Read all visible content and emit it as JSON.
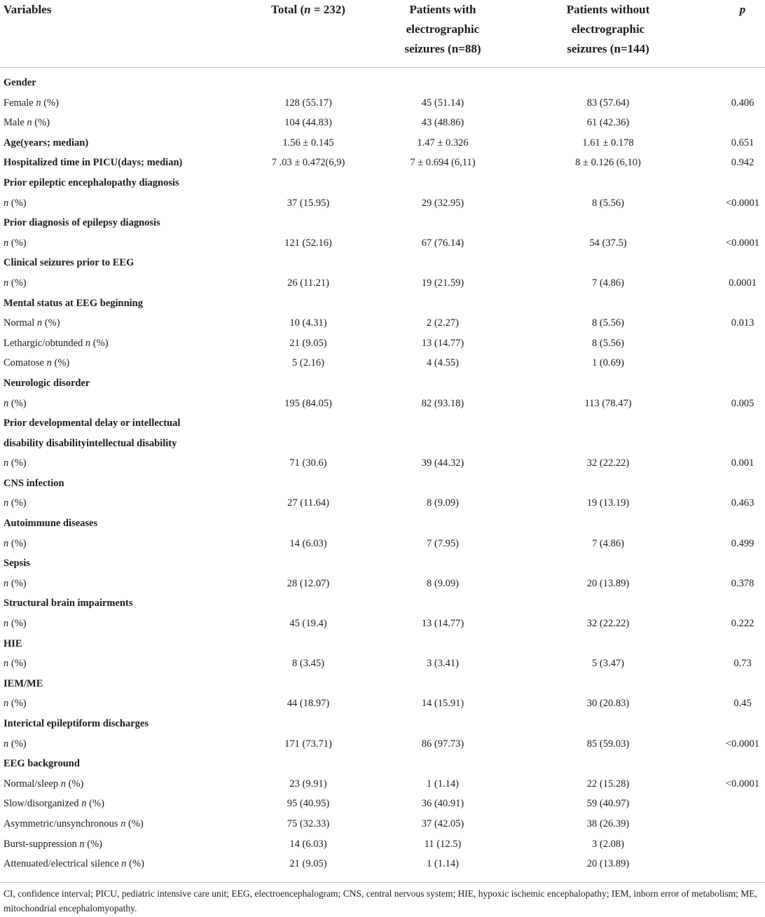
{
  "header": {
    "variables": "Variables",
    "total": "Total (n = 232)",
    "with_lines": [
      "Patients with",
      "electrographic",
      "seizures (n=88)"
    ],
    "without_lines": [
      "Patients without",
      "electrographic",
      "seizures (n=144)"
    ],
    "p": "p"
  },
  "rows": [
    {
      "type": "section",
      "label": "Gender"
    },
    {
      "type": "data",
      "label": "Female ",
      "n_italic": "n",
      "suffix": " (%)",
      "total": "128 (55.17)",
      "with": "45 (51.14)",
      "without": "83 (57.64)",
      "p": "0.406"
    },
    {
      "type": "data",
      "label": "Male ",
      "n_italic": "n",
      "suffix": " (%)",
      "total": "104 (44.83)",
      "with": "43 (48.86)",
      "without": "61 (42.36)",
      "p": ""
    },
    {
      "type": "section-data",
      "label": "Age(years; median)",
      "total": "1.56 ± 0.145",
      "with": "1.47 ± 0.326",
      "without": "1.61 ± 0.178",
      "p": "0.651"
    },
    {
      "type": "section-data",
      "label": "Hospitalized time in PICU(days; median)",
      "total": "7 .03 ± 0.472(6,9)",
      "with": "7 ± 0.694 (6,11)",
      "without": "8 ± 0.126 (6,10)",
      "p": "0.942"
    },
    {
      "type": "section",
      "label": "Prior epileptic encephalopathy diagnosis"
    },
    {
      "type": "data",
      "label": "",
      "n_italic": "n",
      "suffix": " (%)",
      "total": "37 (15.95)",
      "with": "29 (32.95)",
      "without": "8 (5.56)",
      "p": "<0.0001"
    },
    {
      "type": "section",
      "label": "Prior diagnosis of epilepsy diagnosis"
    },
    {
      "type": "data",
      "label": "",
      "n_italic": "n",
      "suffix": " (%)",
      "total": "121 (52.16)",
      "with": "67 (76.14)",
      "without": "54 (37.5)",
      "p": "<0.0001"
    },
    {
      "type": "section",
      "label": "Clinical seizures prior to EEG"
    },
    {
      "type": "data",
      "label": "",
      "n_italic": "n",
      "suffix": " (%)",
      "total": "26 (11.21)",
      "with": "19 (21.59)",
      "without": "7 (4.86)",
      "p": "0.0001"
    },
    {
      "type": "section",
      "label": "Mental status at EEG beginning"
    },
    {
      "type": "data",
      "label": "Normal ",
      "n_italic": "n",
      "suffix": " (%)",
      "total": "10 (4.31)",
      "with": "2 (2.27)",
      "without": "8 (5.56)",
      "p": "0.013"
    },
    {
      "type": "data",
      "label": "Lethargic/obtunded ",
      "n_italic": "n",
      "suffix": " (%)",
      "total": "21 (9.05)",
      "with": "13 (14.77)",
      "without": "8 (5.56)",
      "p": ""
    },
    {
      "type": "data",
      "label": "Comatose ",
      "n_italic": "n",
      "suffix": " (%)",
      "total": "5 (2.16)",
      "with": "4 (4.55)",
      "without": "1 (0.69)",
      "p": ""
    },
    {
      "type": "section",
      "label": "Neurologic disorder"
    },
    {
      "type": "data",
      "label": "",
      "n_italic": "n",
      "suffix": " (%)",
      "total": "195 (84.05)",
      "with": "82 (93.18)",
      "without": "113 (78.47)",
      "p": "0.005"
    },
    {
      "type": "section",
      "label": "Prior developmental delay or intellectual"
    },
    {
      "type": "section",
      "label": "disability disabilityintellectual disability"
    },
    {
      "type": "data",
      "label": "",
      "n_italic": "n",
      "suffix": " (%)",
      "total": "71 (30.6)",
      "with": "39 (44.32)",
      "without": "32 (22.22)",
      "p": "0.001"
    },
    {
      "type": "section",
      "label": "CNS infection"
    },
    {
      "type": "data",
      "label": "",
      "n_italic": "n",
      "suffix": " (%)",
      "total": "27 (11.64)",
      "with": "8 (9.09)",
      "without": "19 (13.19)",
      "p": "0.463"
    },
    {
      "type": "section",
      "label": "Autoimmune diseases"
    },
    {
      "type": "data",
      "label": "",
      "n_italic": "n",
      "suffix": " (%)",
      "total": "14 (6.03)",
      "with": "7 (7.95)",
      "without": "7 (4.86)",
      "p": "0.499"
    },
    {
      "type": "section",
      "label": "Sepsis"
    },
    {
      "type": "data",
      "label": "",
      "n_italic": "n",
      "suffix": " (%)",
      "total": "28 (12.07)",
      "with": "8 (9.09)",
      "without": "20 (13.89)",
      "p": "0.378"
    },
    {
      "type": "section",
      "label": "Structural brain impairments"
    },
    {
      "type": "data",
      "label": "",
      "n_italic": "n",
      "suffix": " (%)",
      "total": "45 (19.4)",
      "with": "13 (14.77)",
      "without": "32 (22.22)",
      "p": "0.222"
    },
    {
      "type": "section",
      "label": "HIE"
    },
    {
      "type": "data",
      "label": "",
      "n_italic": "n",
      "suffix": " (%)",
      "total": "8 (3.45)",
      "with": "3 (3.41)",
      "without": "5 (3.47)",
      "p": "0.73"
    },
    {
      "type": "section",
      "label": "IEM/ME"
    },
    {
      "type": "data",
      "label": "",
      "n_italic": "n",
      "suffix": " (%)",
      "total": "44 (18.97)",
      "with": "14 (15.91)",
      "without": "30 (20.83)",
      "p": "0.45"
    },
    {
      "type": "section",
      "label": "Interictal epileptiform discharges"
    },
    {
      "type": "data",
      "label": "",
      "n_italic": "n",
      "suffix": " (%)",
      "total": "171 (73.71)",
      "with": "86 (97.73)",
      "without": "85 (59.03)",
      "p": "<0.0001"
    },
    {
      "type": "section",
      "label": "EEG background"
    },
    {
      "type": "data",
      "label": "Normal/sleep ",
      "n_italic": "n",
      "suffix": " (%)",
      "total": "23 (9.91)",
      "with": "1 (1.14)",
      "without": "22 (15.28)",
      "p": "<0.0001"
    },
    {
      "type": "data",
      "label": "Slow/disorganized ",
      "n_italic": "n",
      "suffix": " (%)",
      "total": "95 (40.95)",
      "with": "36 (40.91)",
      "without": "59 (40.97)",
      "p": ""
    },
    {
      "type": "data",
      "label": "Asymmetric/unsynchronous ",
      "n_italic": "n",
      "suffix": " (%)",
      "total": "75 (32.33)",
      "with": "37 (42.05)",
      "without": "38 (26.39)",
      "p": ""
    },
    {
      "type": "data",
      "label": "Burst-suppression ",
      "n_italic": "n",
      "suffix": " (%)",
      "total": "14 (6.03)",
      "with": "11 (12.5)",
      "without": "3 (2.08)",
      "p": ""
    },
    {
      "type": "data",
      "label": "Attenuated/electrical silence ",
      "n_italic": "n",
      "suffix": " (%)",
      "total": "21 (9.05)",
      "with": "1 (1.14)",
      "without": "20 (13.89)",
      "p": ""
    }
  ],
  "footnote": "CI, confidence interval; PICU, pediatric intensive care unit; EEG, electroencephalogram; CNS, central nervous system; HIE, hypoxic ischemic encephalopathy; IEM, inborn error of metabolism; ME, mitochondrial encephalomyopathy."
}
